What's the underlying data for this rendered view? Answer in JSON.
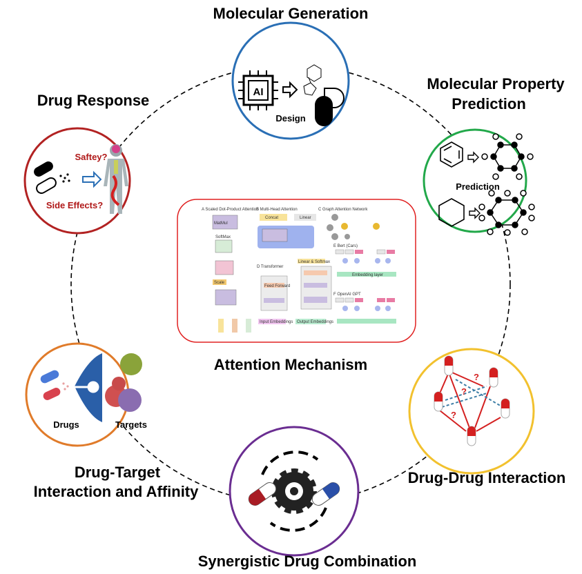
{
  "titles": {
    "top": "Molecular Generation",
    "top_left": "Drug Response",
    "top_right_1": "Molecular Property",
    "top_right_2": "Prediction",
    "center": "Attention Mechanism",
    "bottom_left_1": "Drug-Target",
    "bottom_left_2": "Interaction and Affinity",
    "bottom_right": "Drug-Drug Interaction",
    "bottom": "Synergistic Drug Combination"
  },
  "labels": {
    "design": "Design",
    "ai": "AI",
    "safety": "Saftey?",
    "side_effects": "Side Effects?",
    "prediction": "Prediction",
    "drugs": "Drugs",
    "targets": "Targets",
    "question": "?"
  },
  "panels": {
    "a": "A  Scaled Dot-Product Attention",
    "b": "B  Multi-Head Attention",
    "c": "C  Graph Attention Network",
    "d": "D  Transformer",
    "e": "E  Bert (Cars)",
    "f": "F  OpenAI GPT",
    "concat": "Concat",
    "linear": "Linear",
    "scale": "Scale",
    "matmul": "MatMul",
    "softmax": "SoftMax",
    "feed_forward": "Feed Forward",
    "mha": "Multi-Head Attention",
    "input_emb": "Input Embeddings",
    "output_emb": "Output Embeddings",
    "embedding_layer": "Embedding layer",
    "linear_softmax": "Linear & Softmax"
  },
  "colors": {
    "top_circle": "#2a6fb5",
    "left_top_circle": "#b22222",
    "right_top_circle": "#22a84a",
    "left_bottom_circle": "#e07b2a",
    "right_bottom_circle": "#f2c12e",
    "bottom_circle": "#6a2d91",
    "center_box": "#e02020",
    "warning_text": "#b01818"
  }
}
